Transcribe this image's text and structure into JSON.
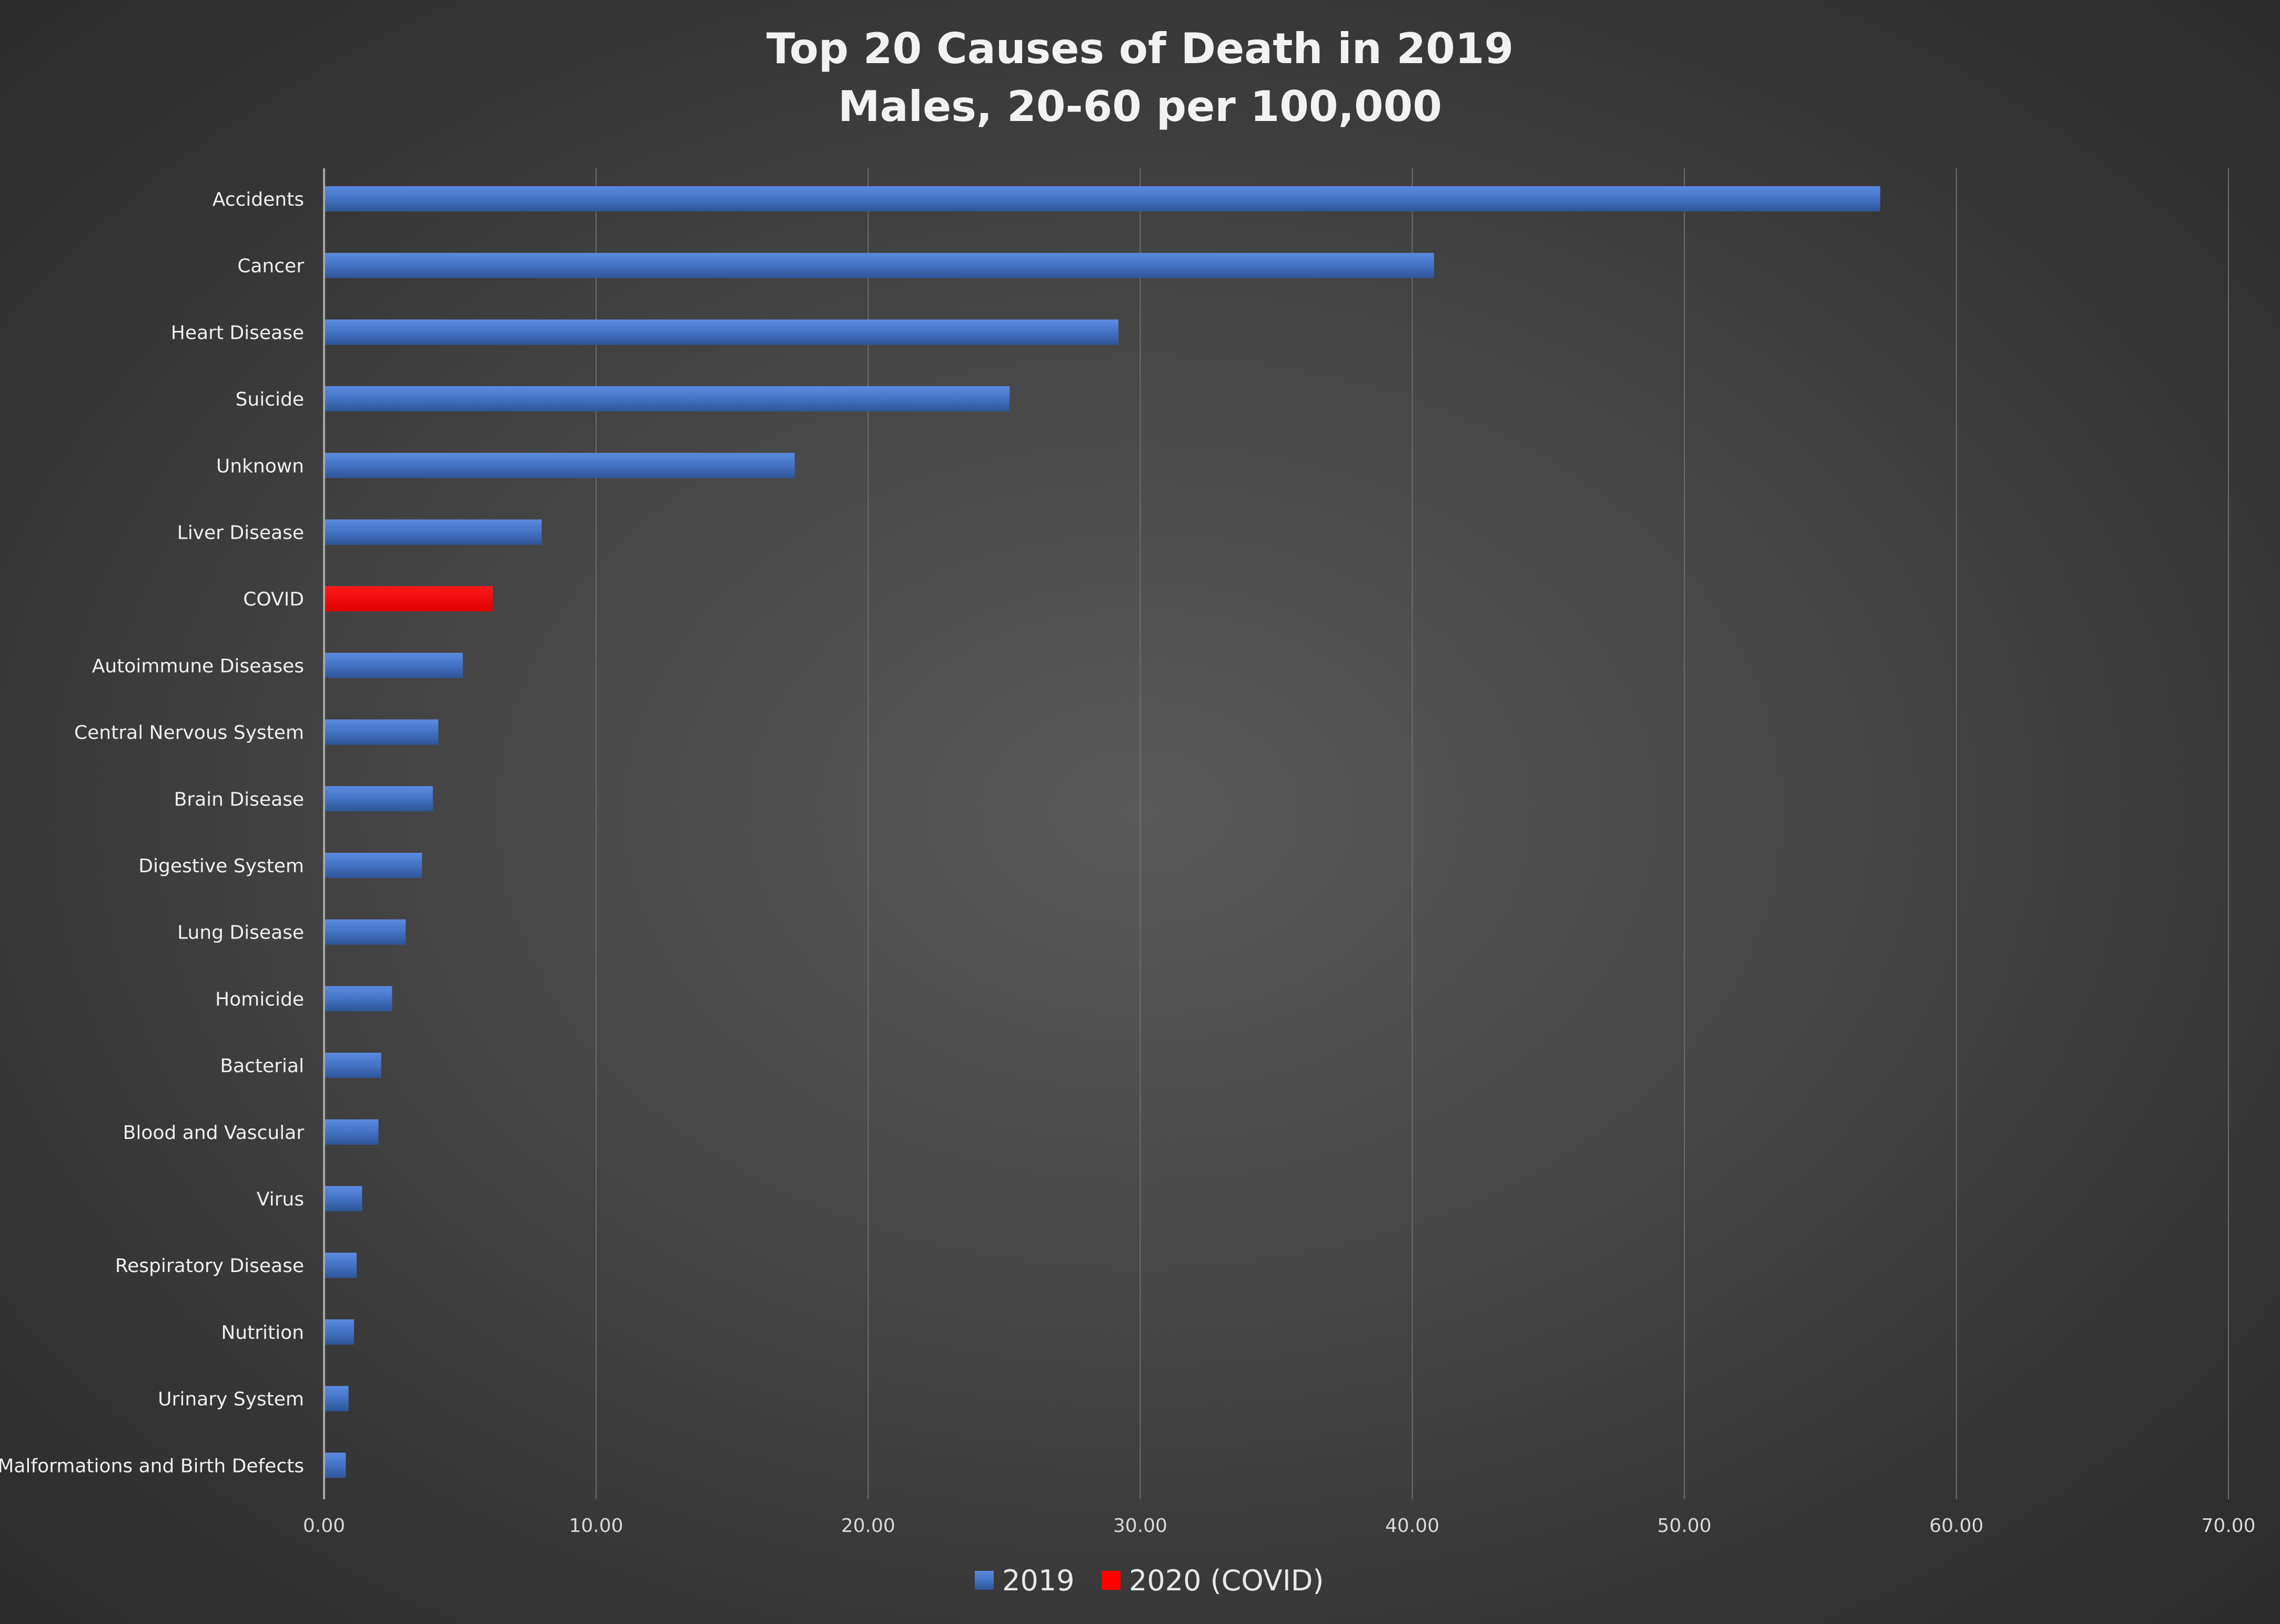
{
  "chart_data": {
    "type": "bar",
    "orientation": "horizontal",
    "title": "Top 20 Causes of Death in 2019",
    "subtitle": "Males, 20-60 per 100,000",
    "xlabel": "",
    "ylabel": "",
    "xlim": [
      0,
      70
    ],
    "x_ticks": [
      "0.00",
      "10.00",
      "20.00",
      "30.00",
      "40.00",
      "50.00",
      "60.00",
      "70.00"
    ],
    "grid": true,
    "legend_position": "bottom",
    "categories": [
      "Accidents",
      "Cancer",
      "Heart Disease",
      "Suicide",
      "Unknown",
      "Liver Disease",
      "COVID",
      "Autoimmune Diseases",
      "Central Nervous System",
      "Brain Disease",
      "Digestive System",
      "Lung Disease",
      "Homicide",
      "Bacterial",
      "Blood and Vascular",
      "Virus",
      "Respiratory Disease",
      "Nutrition",
      "Urinary System",
      "Malformations and Birth Defects"
    ],
    "values": [
      57.2,
      40.8,
      29.2,
      25.2,
      17.3,
      8.0,
      6.2,
      5.1,
      4.2,
      4.0,
      3.6,
      3.0,
      2.5,
      2.1,
      2.0,
      1.4,
      1.2,
      1.1,
      0.9,
      0.8
    ],
    "series_of_each": [
      "2019",
      "2019",
      "2019",
      "2019",
      "2019",
      "2019",
      "2020 (COVID)",
      "2019",
      "2019",
      "2019",
      "2019",
      "2019",
      "2019",
      "2019",
      "2019",
      "2019",
      "2019",
      "2019",
      "2019",
      "2019"
    ],
    "series": [
      {
        "name": "2019",
        "color": "#4472c4"
      },
      {
        "name": "2020 (COVID)",
        "color": "#ff0000"
      }
    ]
  }
}
